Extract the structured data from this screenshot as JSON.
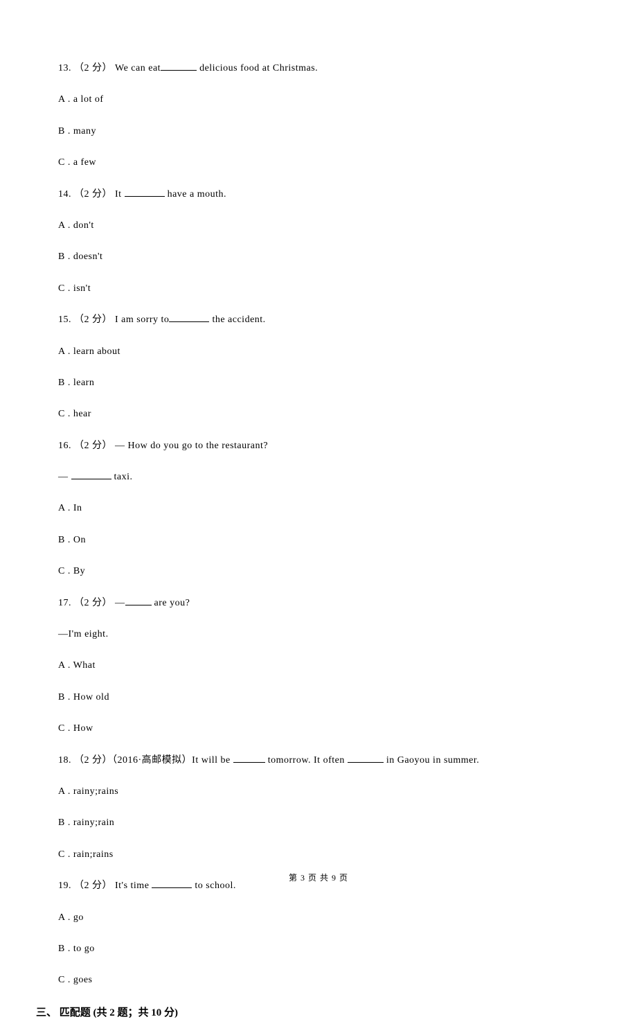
{
  "questions": [
    {
      "number": "13. （2 分） We can eat",
      "after_blank": " delicious food at Christmas.",
      "options": [
        "A . a lot of",
        "B . many",
        "C . a few"
      ],
      "blank_class": "blank-short"
    },
    {
      "number": "14. （2 分） It ",
      "after_blank": " have a mouth.",
      "options": [
        "A . don't",
        "B . doesn't",
        "C . isn't"
      ],
      "blank_class": "blank-med"
    },
    {
      "number": "15. （2 分） I am sorry to",
      "after_blank": " the accident.",
      "options": [
        "A . learn about",
        "B . learn",
        "C . hear"
      ],
      "blank_class": "blank-med"
    },
    {
      "number": "16. （2 分） — How do you go to the restaurant?",
      "after_blank": "",
      "line2_before": "— ",
      "line2_after": " taxi.",
      "options": [
        "A . In",
        "B . On",
        "C . By"
      ],
      "blank_class": "blank-med"
    },
    {
      "number": "17. （2 分） —",
      "after_blank": " are you?",
      "line2_before": "—I'm eight.",
      "line2_after": "",
      "options": [
        "A . What",
        "B . How old",
        "C . How"
      ],
      "blank_class": "blank-xs"
    },
    {
      "number": "18. （2 分）（2016·高邮模拟）It will be ",
      "after_blank": " tomorrow. It often ",
      "after_blank2": " in Gaoyou in summer.",
      "options": [
        "A . rainy;rains",
        "B . rainy;rain",
        "C . rain;rains"
      ],
      "blank_class": "blank-long",
      "blank_class2": "blank-short"
    },
    {
      "number": "19. （2 分） It's time ",
      "after_blank": " to school.",
      "options": [
        "A . go",
        "B . to go",
        "C . goes"
      ],
      "blank_class": "blank-med"
    }
  ],
  "section_header": "三、 匹配题 (共 2 题；共 10 分)",
  "footer": "第 3 页 共 9 页"
}
